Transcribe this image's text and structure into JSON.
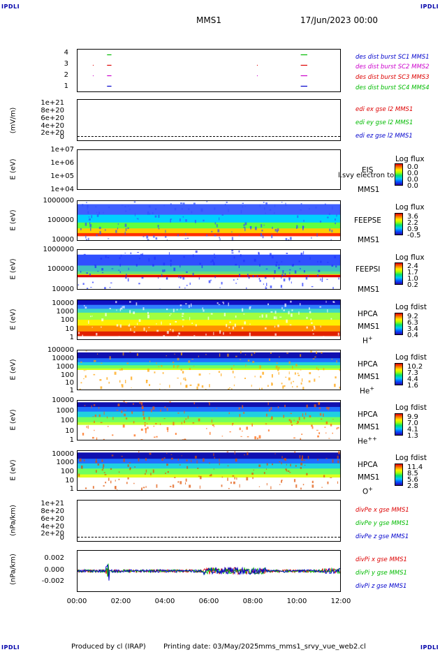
{
  "corner_label": "IPDLI",
  "header": {
    "spacecraft": "MMS1",
    "datetime": "17/Jun/2023 00:00"
  },
  "footer": {
    "produced_by": "Produced by cl (IRAP)",
    "printing_date": "Printing date: 03/May/2025",
    "program": "mms_mms1_srvy_vue_web2.cl"
  },
  "colors": {
    "mms1": "#0000cc",
    "mms2": "#cc00cc",
    "mms3": "#dd0000",
    "mms4": "#00bb00"
  },
  "chart_data": [
    {
      "type": "line",
      "panel": "burst",
      "yticks": [
        "4",
        "3",
        "2",
        "1"
      ],
      "ylim": [
        0.5,
        4.5
      ],
      "xlim": [
        "00:00",
        "12:00"
      ],
      "legend": [
        "des dist burst SC1 MMS1",
        "des dist burst SC2 MMS2",
        "des dist burst SC3 MMS3",
        "des dist burst SC4 MMS4"
      ],
      "series": [
        {
          "name": "des dist burst SC1 MMS1",
          "y": 1,
          "intervals_h": [
            [
              1.35,
              1.55
            ],
            [
              10.2,
              10.5
            ]
          ]
        },
        {
          "name": "des dist burst SC2 MMS2",
          "y": 2,
          "intervals_h": [
            [
              0.7,
              0.72
            ],
            [
              1.35,
              1.55
            ],
            [
              8.2,
              8.22
            ],
            [
              10.2,
              10.5
            ]
          ]
        },
        {
          "name": "des dist burst SC3 MMS3",
          "y": 3,
          "intervals_h": [
            [
              0.7,
              0.72
            ],
            [
              1.35,
              1.55
            ],
            [
              8.2,
              8.22
            ],
            [
              10.2,
              10.5
            ]
          ]
        },
        {
          "name": "des dist burst SC4 MMS4",
          "y": 4,
          "intervals_h": [
            [
              1.35,
              1.55
            ],
            [
              10.2,
              10.5
            ]
          ]
        }
      ]
    },
    {
      "type": "line",
      "panel": "edi",
      "ylabel": "(mV/m)",
      "yticks": [
        "1e+21",
        "8e+20",
        "6e+20",
        "4e+20",
        "2e+20",
        "0"
      ],
      "legend": [
        "edi ex gse l2 MMS1",
        "edi ey gse l2 MMS1",
        "edi ez gse l2 MMS1"
      ]
    },
    {
      "type": "heatmap",
      "panel": "eis",
      "ylabel": "E (eV)",
      "yticks": [
        "1e+07",
        "1e+06",
        "1e+05",
        "1e+04"
      ],
      "instrument": [
        "EIS",
        "MMS1"
      ],
      "overlay_text": "l.svy electron to",
      "colorbar": {
        "title": "Log flux",
        "ticks": [
          "0.0",
          "0.0",
          "0.0",
          "0.0"
        ]
      }
    },
    {
      "type": "heatmap",
      "panel": "feepse",
      "ylabel": "E (eV)",
      "yticks": [
        "1000000",
        "100000",
        "10000"
      ],
      "instrument": [
        "FEEPSE",
        "MMS1"
      ],
      "colorbar": {
        "title": "Log flux",
        "ticks": [
          "3.6",
          "2.2",
          "0.9",
          "-0.5"
        ]
      }
    },
    {
      "type": "heatmap",
      "panel": "feepsi",
      "ylabel": "E (eV)",
      "yticks": [
        "1000000",
        "100000",
        "10000"
      ],
      "instrument": [
        "FEEPSI",
        "MMS1"
      ],
      "colorbar": {
        "title": "Log flux",
        "ticks": [
          "2.4",
          "1.7",
          "1.0",
          "0.2"
        ]
      }
    },
    {
      "type": "heatmap",
      "panel": "hpca_h",
      "ylabel": "E (eV)",
      "yticks": [
        "10000",
        "1000",
        "100",
        "10",
        "1"
      ],
      "instrument": [
        "HPCA",
        "MMS1",
        "H",
        "+"
      ],
      "colorbar": {
        "title": "Log fdist",
        "ticks": [
          "9.2",
          "6.3",
          "3.4",
          "0.4"
        ]
      }
    },
    {
      "type": "heatmap",
      "panel": "hpca_he",
      "ylabel": "E (eV)",
      "yticks": [
        "100000",
        "10000",
        "1000",
        "100",
        "10",
        "1"
      ],
      "instrument": [
        "HPCA",
        "MMS1",
        "He",
        "+"
      ],
      "colorbar": {
        "title": "Log fdist",
        "ticks": [
          "10.2",
          "7.3",
          "4.4",
          "1.6"
        ]
      }
    },
    {
      "type": "heatmap",
      "panel": "hpca_hepp",
      "ylabel": "E (eV)",
      "yticks": [
        "10000",
        "1000",
        "100",
        "10",
        "1"
      ],
      "instrument": [
        "HPCA",
        "MMS1",
        "He",
        "++"
      ],
      "colorbar": {
        "title": "Log fdist",
        "ticks": [
          "9.9",
          "7.0",
          "4.1",
          "1.3"
        ]
      }
    },
    {
      "type": "heatmap",
      "panel": "hpca_o",
      "ylabel": "E (eV)",
      "yticks": [
        "10000",
        "1000",
        "100",
        "10",
        "1"
      ],
      "instrument": [
        "HPCA",
        "MMS1",
        "O",
        "+"
      ],
      "colorbar": {
        "title": "Log fdist",
        "ticks": [
          "11.4",
          "8.5",
          "5.6",
          "2.8"
        ]
      }
    },
    {
      "type": "line",
      "panel": "divpe",
      "ylabel": "(nPa/km)",
      "yticks": [
        "1e+21",
        "8e+20",
        "6e+20",
        "4e+20",
        "2e+20",
        "0"
      ],
      "legend": [
        "divPe x gse MMS1",
        "divPe y gse MMS1",
        "divPe z gse MMS1"
      ]
    },
    {
      "type": "line",
      "panel": "divpi",
      "ylabel": "(nPa/km)",
      "yticks": [
        "0.002",
        "0.000",
        "-0.002"
      ],
      "ylim": [
        -0.003,
        0.003
      ],
      "legend": [
        "divPi x gse MMS1",
        "divPi y gse MMS1",
        "divPi z gse MMS1"
      ],
      "xticks": [
        "00:00",
        "02:00",
        "04:00",
        "06:00",
        "08:00",
        "10:00",
        "12:00"
      ]
    }
  ]
}
